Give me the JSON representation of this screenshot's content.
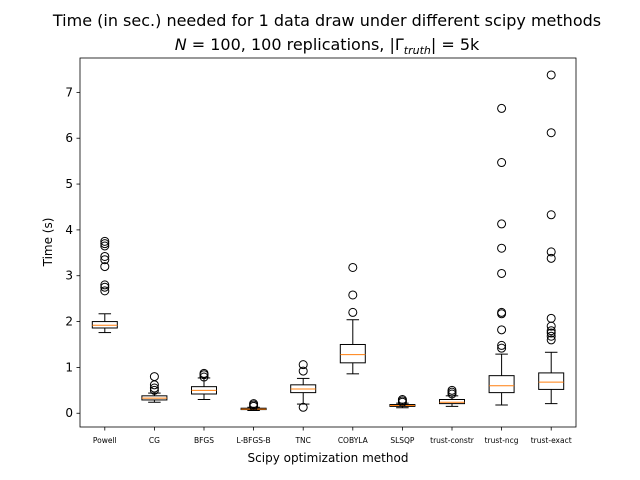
{
  "chart_data": {
    "type": "box",
    "title": "Time (in sec.) needed for 1 data draw under different scipy methods",
    "subtitle": "N = 100, 100 replications, |Γtruth| = 5k",
    "subtitle_parts": {
      "n_symbol": "N",
      "n_value": " = 100, 100 replications, |Γ",
      "gamma_sub": "truth",
      "tail": "| = 5k"
    },
    "xlabel": "Scipy optimization method",
    "ylabel": "Time (s)",
    "ylim": [
      -0.3,
      7.75
    ],
    "yticks": [
      0,
      1,
      2,
      3,
      4,
      5,
      6,
      7
    ],
    "grid": false,
    "colors": {
      "box": "#000000",
      "median": "#ff7f0e",
      "flier": "#000000"
    },
    "categories": [
      "Powell",
      "CG",
      "BFGS",
      "L-BFGS-B",
      "TNC",
      "COBYLA",
      "SLSQP",
      "trust-constr",
      "trust-ncg",
      "trust-exact"
    ],
    "boxes": [
      {
        "whislo": 1.76,
        "q1": 1.86,
        "med": 1.92,
        "q3": 2.0,
        "whishi": 2.17,
        "fliers": [
          2.67,
          2.75,
          2.8,
          3.2,
          3.35,
          3.42,
          3.65,
          3.7,
          3.75
        ]
      },
      {
        "whislo": 0.24,
        "q1": 0.29,
        "med": 0.33,
        "q3": 0.38,
        "whishi": 0.44,
        "fliers": [
          0.5,
          0.55,
          0.62,
          0.8
        ]
      },
      {
        "whislo": 0.3,
        "q1": 0.42,
        "med": 0.5,
        "q3": 0.58,
        "whishi": 0.77,
        "fliers": [
          0.79,
          0.84,
          0.87
        ]
      },
      {
        "whislo": 0.06,
        "q1": 0.08,
        "med": 0.09,
        "q3": 0.11,
        "whishi": 0.13,
        "fliers": [
          0.15,
          0.18,
          0.21
        ]
      },
      {
        "whislo": 0.2,
        "q1": 0.45,
        "med": 0.53,
        "q3": 0.62,
        "whishi": 0.76,
        "fliers": [
          0.13,
          0.92,
          1.06
        ]
      },
      {
        "whislo": 0.86,
        "q1": 1.1,
        "med": 1.28,
        "q3": 1.5,
        "whishi": 2.04,
        "fliers": [
          2.2,
          2.58,
          3.18
        ]
      },
      {
        "whislo": 0.12,
        "q1": 0.15,
        "med": 0.17,
        "q3": 0.19,
        "whishi": 0.22,
        "fliers": [
          0.24,
          0.27,
          0.3
        ]
      },
      {
        "whislo": 0.15,
        "q1": 0.21,
        "med": 0.24,
        "q3": 0.3,
        "whishi": 0.38,
        "fliers": [
          0.42,
          0.46,
          0.5
        ]
      },
      {
        "whislo": 0.18,
        "q1": 0.45,
        "med": 0.6,
        "q3": 0.82,
        "whishi": 1.29,
        "fliers": [
          1.42,
          1.48,
          1.82,
          2.17,
          2.2,
          3.05,
          3.6,
          4.13,
          5.47,
          6.65
        ]
      },
      {
        "whislo": 0.21,
        "q1": 0.52,
        "med": 0.68,
        "q3": 0.88,
        "whishi": 1.33,
        "fliers": [
          1.6,
          1.68,
          1.75,
          1.8,
          1.9,
          2.07,
          3.38,
          3.52,
          4.33,
          6.12,
          7.38
        ]
      }
    ]
  }
}
